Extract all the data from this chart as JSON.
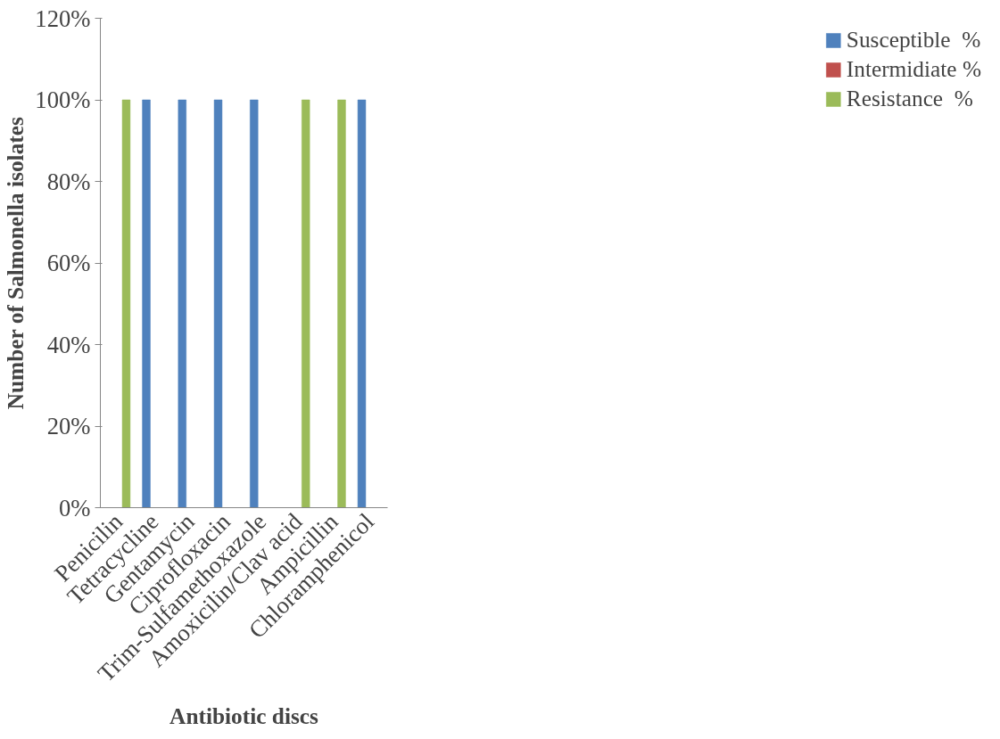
{
  "chart_data": {
    "type": "bar",
    "xlabel": "Antibiotic discs",
    "ylabel": "Number of Salmonella isolates",
    "categories": [
      "Penicilin",
      "Tetracycline",
      "Gentamycin",
      "Ciprofloxacin",
      "Trim-Sulfamethoxazole",
      "Amoxicilin/Clav acid",
      "Ampicillin",
      "Chloramphenicol"
    ],
    "series": [
      {
        "name": "Susceptible  %",
        "color": "#4f81bd",
        "values": [
          0,
          100,
          100,
          100,
          100,
          0,
          0,
          100
        ]
      },
      {
        "name": "Intermidiate %",
        "color": "#c0504d",
        "values": [
          0,
          0,
          0,
          0,
          0,
          0,
          0,
          0
        ]
      },
      {
        "name": "Resistance  %",
        "color": "#9bbb59",
        "values": [
          100,
          0,
          0,
          0,
          0,
          100,
          100,
          0
        ]
      }
    ],
    "ylim": [
      0,
      120
    ],
    "yticks": [
      {
        "value": 0,
        "label": "0%"
      },
      {
        "value": 20,
        "label": "20%"
      },
      {
        "value": 40,
        "label": "40%"
      },
      {
        "value": 60,
        "label": "60%"
      },
      {
        "value": 80,
        "label": "80%"
      },
      {
        "value": 100,
        "label": "100%"
      },
      {
        "value": 120,
        "label": "120%"
      }
    ],
    "grid": false,
    "legend": "right"
  }
}
